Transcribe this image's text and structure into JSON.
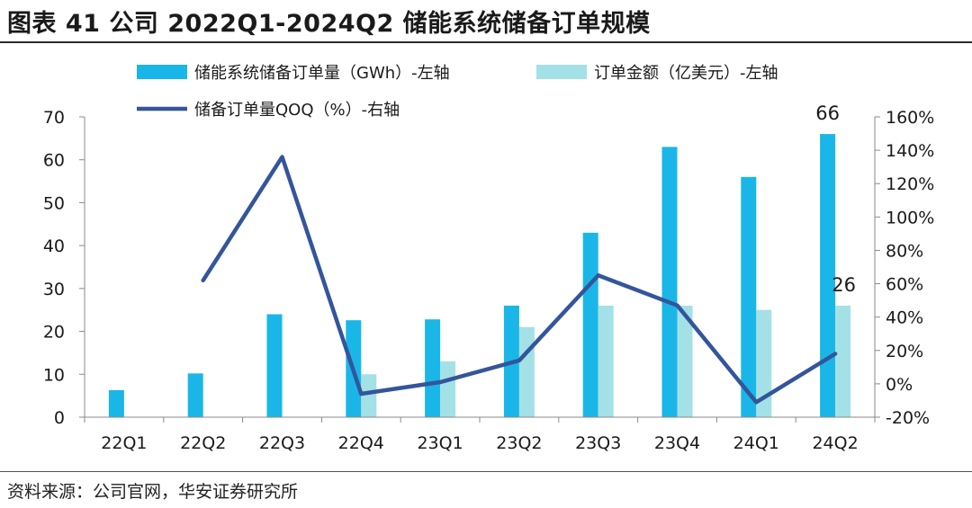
{
  "title": "图表 41  公司 2022Q1-2024Q2 储能系统储备订单规模",
  "source": "资料来源：公司官网，华安证券研究所",
  "chart_data": {
    "type": "bar",
    "categories": [
      "22Q1",
      "22Q2",
      "22Q3",
      "22Q4",
      "23Q1",
      "23Q2",
      "23Q3",
      "23Q4",
      "24Q1",
      "24Q2"
    ],
    "series": [
      {
        "name": "储能系统储备订单量（GWh）-左轴",
        "kind": "bar",
        "axis": "left",
        "color": "#1ab6e8",
        "values": [
          6.3,
          10.2,
          24.0,
          22.6,
          22.8,
          26.0,
          43.0,
          63.0,
          56.0,
          66.0
        ]
      },
      {
        "name": "订单金额（亿美元）-左轴",
        "kind": "bar",
        "axis": "left",
        "color": "#a3e1e6",
        "values": [
          null,
          null,
          null,
          10.0,
          13.0,
          21.0,
          26.0,
          26.0,
          25.0,
          26.0
        ]
      },
      {
        "name": "储备订单量QOQ（%）-右轴",
        "kind": "line",
        "axis": "right",
        "color": "#33559b",
        "values": [
          null,
          62,
          136,
          -6,
          1,
          14,
          65,
          47,
          -11,
          18
        ]
      }
    ],
    "left_axis": {
      "min": 0,
      "max": 70,
      "ticks": [
        0,
        10,
        20,
        30,
        40,
        50,
        60,
        70
      ]
    },
    "right_axis": {
      "min": -20,
      "max": 160,
      "ticks": [
        -20,
        0,
        20,
        40,
        60,
        80,
        100,
        120,
        140,
        160
      ],
      "tick_labels": [
        "-20%",
        "0%",
        "20%",
        "40%",
        "60%",
        "80%",
        "100%",
        "120%",
        "140%",
        "160%"
      ]
    },
    "annotations": [
      {
        "text": "66",
        "series": 0,
        "index": 9
      },
      {
        "text": "26",
        "series": 1,
        "index": 9
      }
    ],
    "legend_position": "top",
    "grid": false
  }
}
